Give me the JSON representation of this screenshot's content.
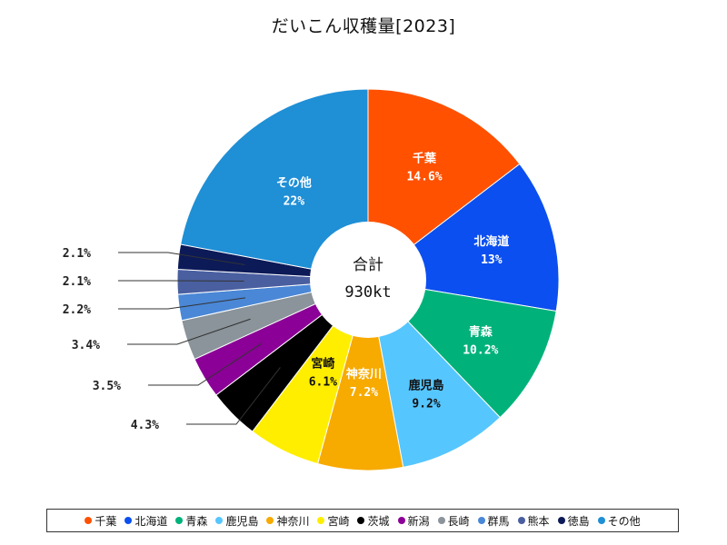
{
  "chart_data": {
    "type": "pie",
    "title": "だいこん収穫量[2023]",
    "center_label": "合計",
    "center_value": "930kt",
    "categories": [
      "千葉",
      "北海道",
      "青森",
      "鹿児島",
      "神奈川",
      "宮崎",
      "茨城",
      "新潟",
      "長崎",
      "群馬",
      "熊本",
      "徳島",
      "その他"
    ],
    "values": [
      14.6,
      13,
      10.2,
      9.2,
      7.2,
      6.1,
      4.3,
      3.5,
      3.4,
      2.2,
      2.1,
      2.1,
      22
    ],
    "value_labels": [
      "14.6%",
      "13%",
      "10.2%",
      "9.2%",
      "7.2%",
      "6.1%",
      "4.3%",
      "3.5%",
      "3.4%",
      "2.2%",
      "2.1%",
      "2.1%",
      "22%"
    ],
    "colors": [
      "#ff5100",
      "#0b4ff0",
      "#00b27a",
      "#56c6ff",
      "#f7aa00",
      "#ffee00",
      "#000000",
      "#8b0096",
      "#8a949a",
      "#4a87d6",
      "#4a5fa0",
      "#0c1a58",
      "#1f8fd6"
    ],
    "label_colors": [
      "#ffffff",
      "#ffffff",
      "#ffffff",
      "#111111",
      "#ffffff",
      "#111111",
      "",
      "",
      "",
      "",
      "",
      "",
      "#ffffff"
    ],
    "legend_position": "bottom"
  }
}
